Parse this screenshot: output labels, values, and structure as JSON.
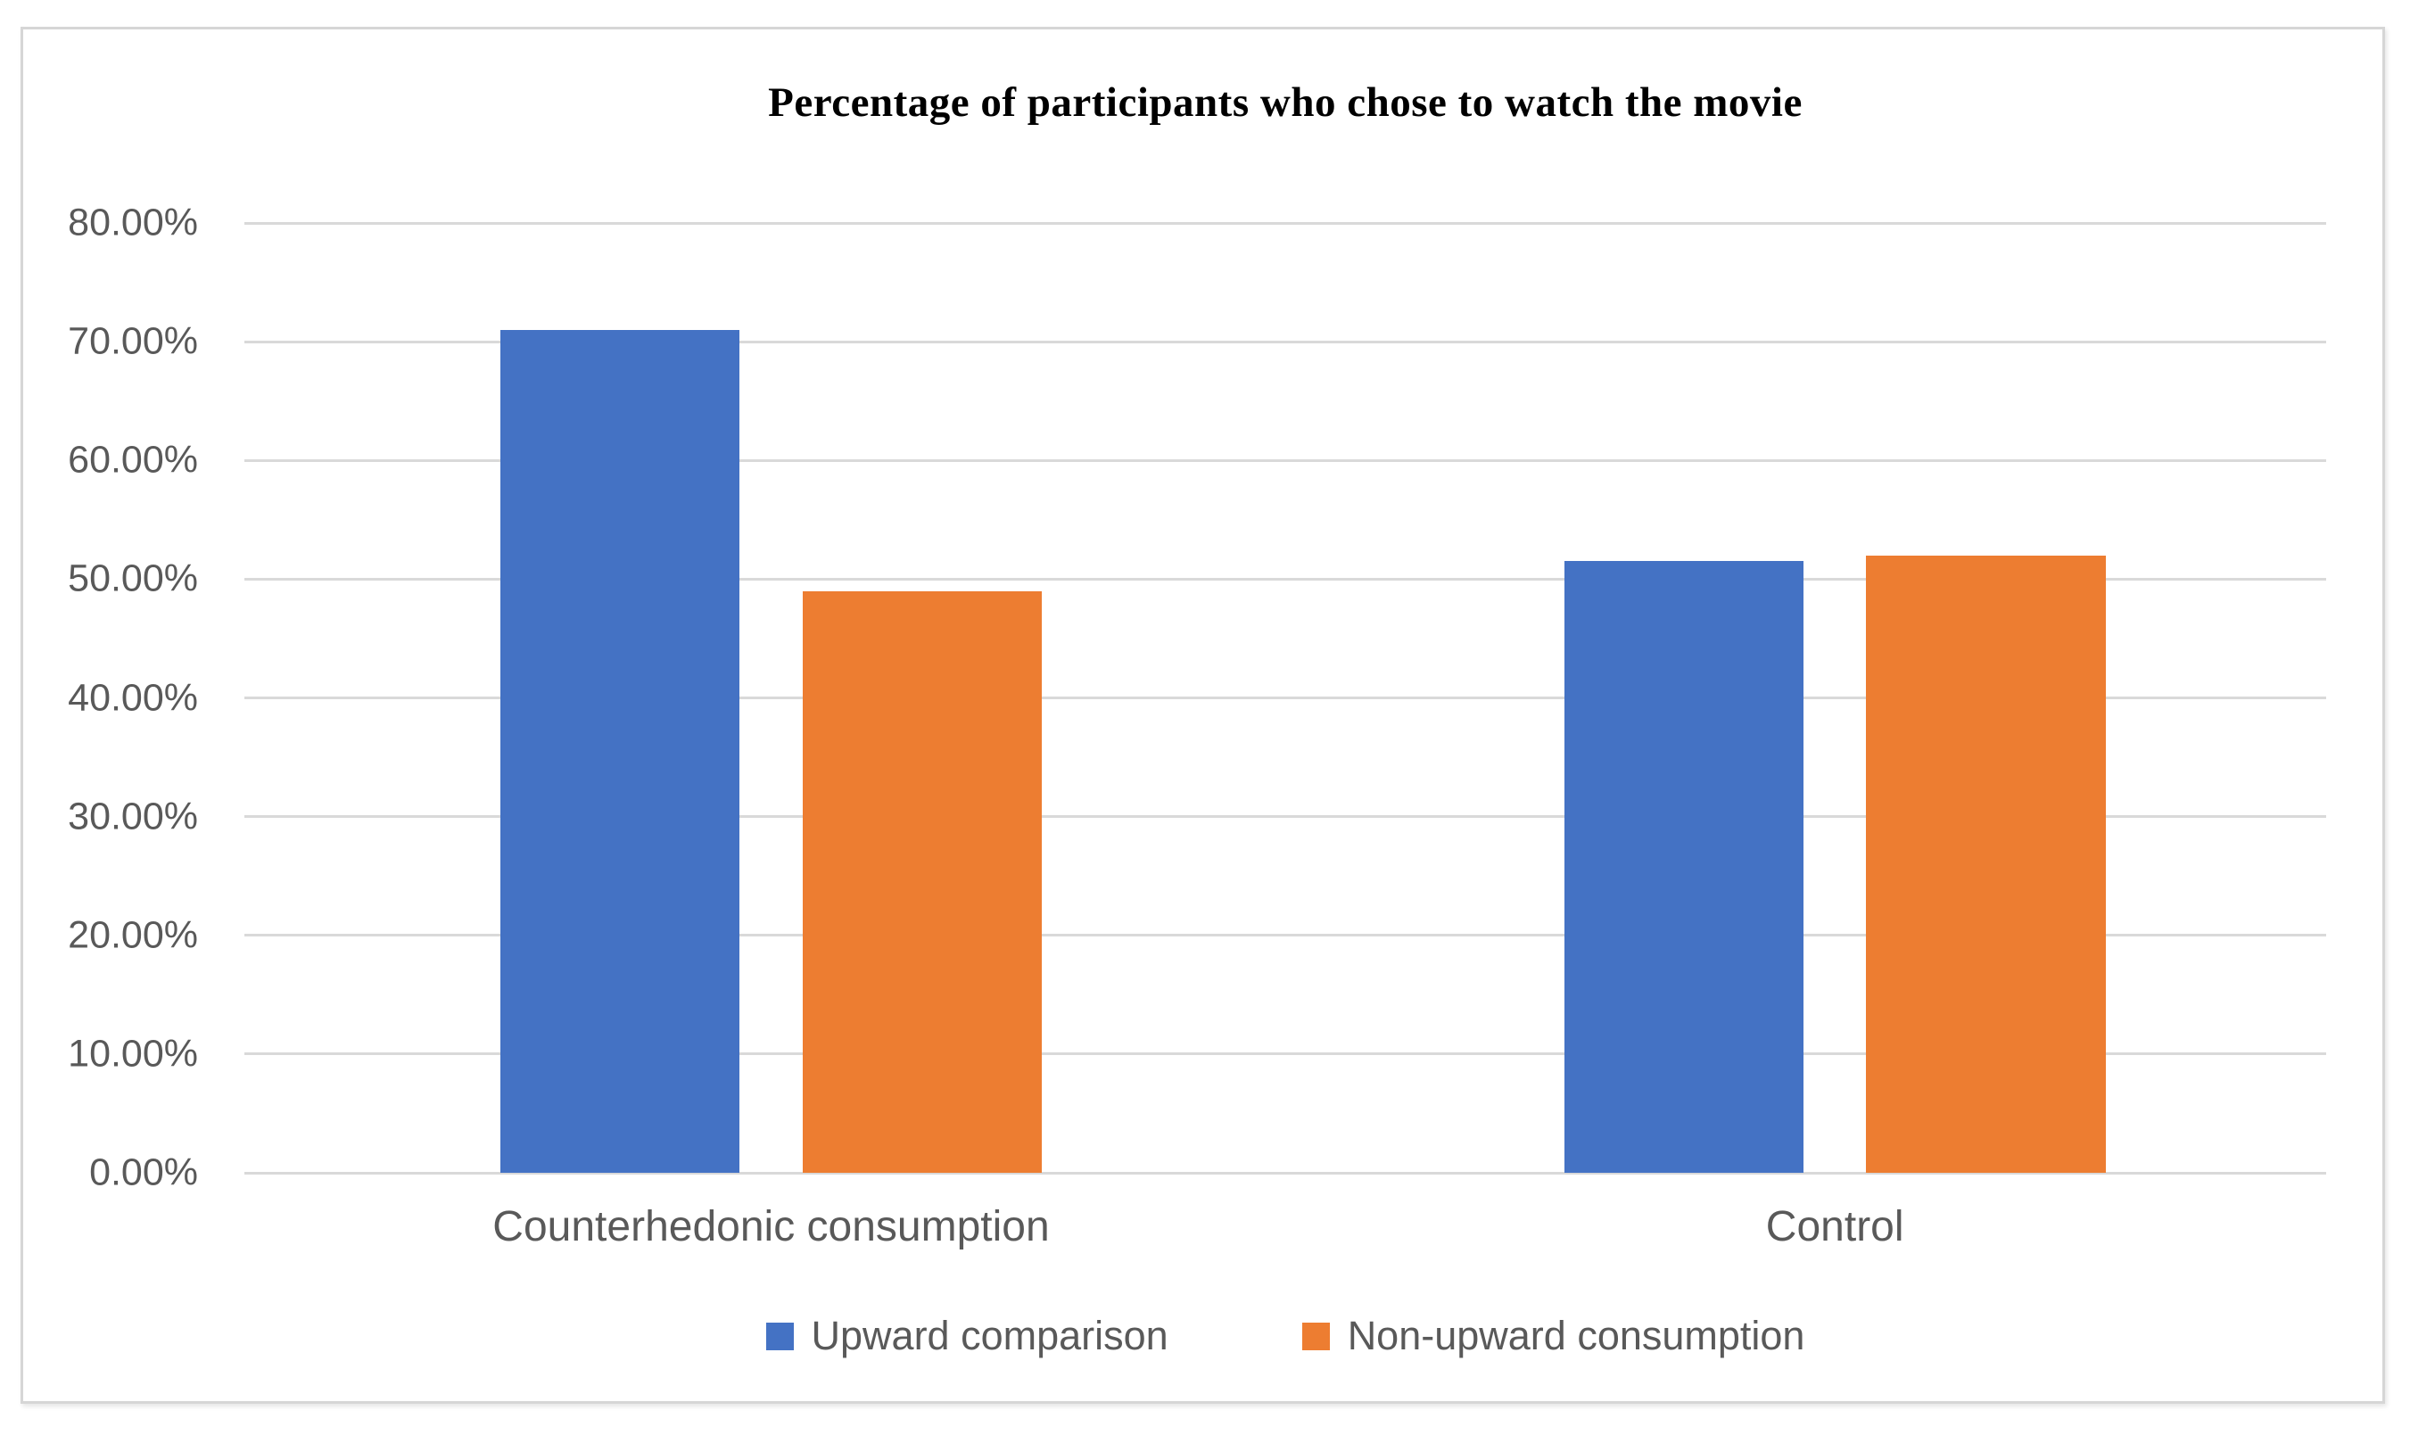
{
  "chart_data": {
    "type": "bar",
    "title": "Percentage of participants who chose to watch the movie",
    "categories": [
      "Counterhedonic consumption",
      "Control"
    ],
    "series": [
      {
        "name": "Upward comparison",
        "color": "#4472C4",
        "values": [
          71,
          51.5
        ]
      },
      {
        "name": "Non-upward consumption",
        "color": "#ED7D31",
        "values": [
          49,
          52
        ]
      }
    ],
    "value_unit": "%",
    "y_axis": {
      "min": 0,
      "max": 80,
      "step": 10,
      "tick_labels": [
        "0.00%",
        "10.00%",
        "20.00%",
        "30.00%",
        "40.00%",
        "50.00%",
        "60.00%",
        "70.00%",
        "80.00%"
      ]
    },
    "grid": true,
    "legend_position": "bottom",
    "styles": {
      "background": "#FFFFFF",
      "grid_color": "#D9D9D9",
      "axis_text_color": "#595959",
      "title_color": "#000000",
      "frame_border_color": "#D6D6D6"
    }
  }
}
